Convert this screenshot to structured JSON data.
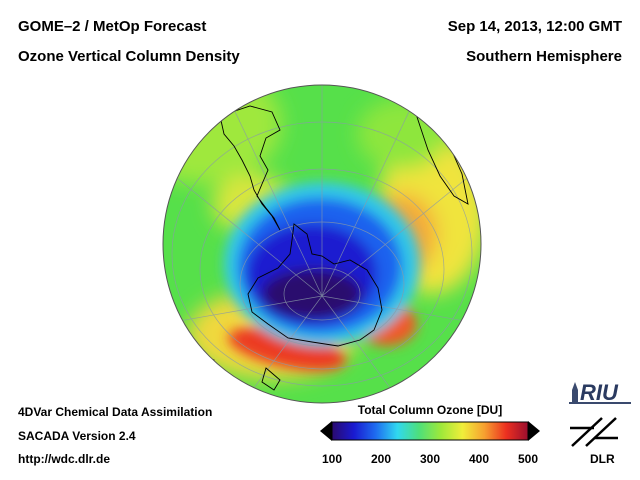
{
  "header": {
    "instrument": "GOME–2 / MetOp Forecast",
    "product": "Ozone Vertical Column Density",
    "datetime": "Sep 14, 2013, 12:00 GMT",
    "region": "Southern Hemisphere"
  },
  "footer": {
    "method": "4DVar Chemical Data Assimilation",
    "version": "SACADA Version 2.4",
    "url": "http://wdc.dlr.de"
  },
  "colorbar": {
    "title": "Total Column Ozone [DU]",
    "ticks": [
      {
        "label": "100",
        "value": 100
      },
      {
        "label": "200",
        "value": 200
      },
      {
        "label": "300",
        "value": 300
      },
      {
        "label": "400",
        "value": 400
      },
      {
        "label": "500",
        "value": 500
      }
    ],
    "range": [
      100,
      500
    ],
    "colors": [
      "#2a0a6e",
      "#1a1ad0",
      "#1e6cf0",
      "#30d8f0",
      "#4ee07a",
      "#9ee83a",
      "#f0ee3a",
      "#f7a030",
      "#ec3020",
      "#9a0e2e"
    ]
  },
  "map": {
    "projection": "orthographic",
    "center": "South Pole",
    "ozone_hole_min_du": 150
  },
  "logos": {
    "riu": "RIU",
    "dlr": "DLR"
  }
}
